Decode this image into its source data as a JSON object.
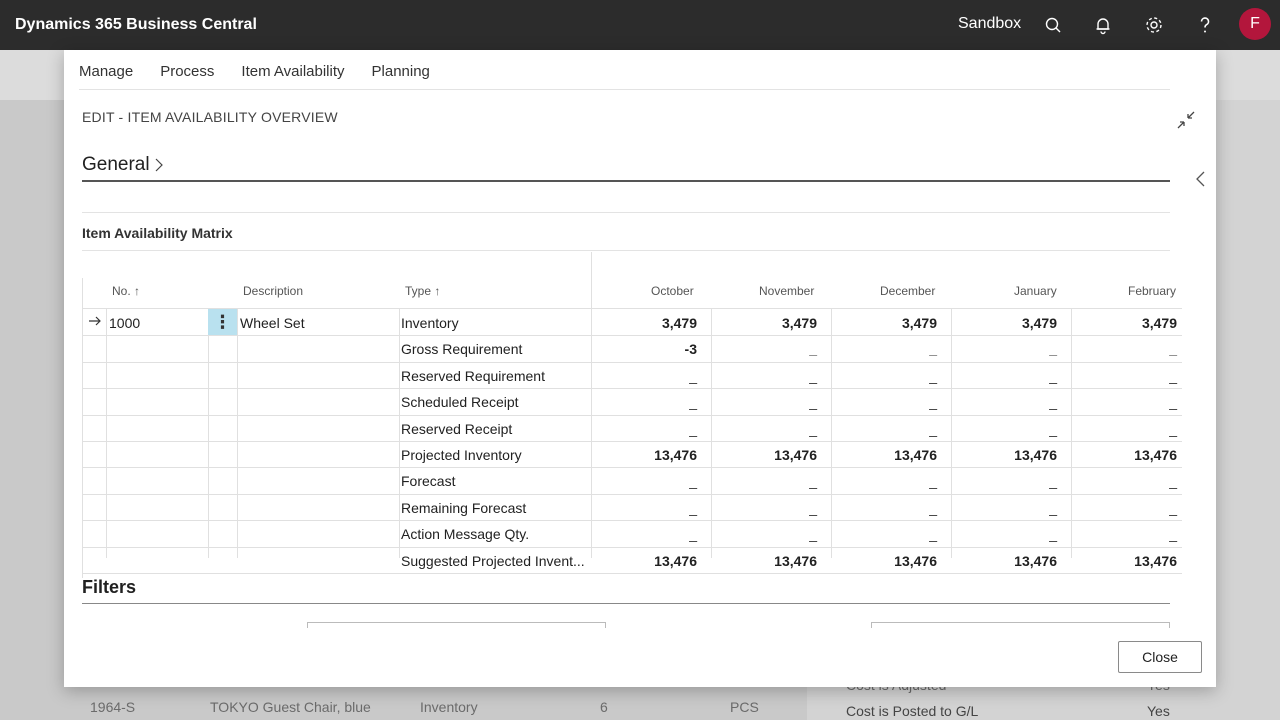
{
  "app": {
    "title": "Dynamics 365 Business Central",
    "environment": "Sandbox",
    "avatar_initial": "F",
    "avatar_color": "#b3163c",
    "icons": [
      "search-icon",
      "bell-icon",
      "gear-icon",
      "help-icon"
    ]
  },
  "background": {
    "row_texts": [
      "1964-S",
      "TOKYO Guest Chair, blue",
      "Inventory",
      "6",
      "PCS"
    ],
    "right_texts": [
      {
        "label": "Cost is Adjusted",
        "value": "Yes"
      },
      {
        "label": "Cost is Posted to G/L",
        "value": "Yes"
      }
    ]
  },
  "dialog": {
    "menu": [
      "Manage",
      "Process",
      "Item Availability",
      "Planning"
    ],
    "caption": "EDIT - ITEM AVAILABILITY OVERVIEW",
    "general_label": "General",
    "matrix_title": "Item Availability Matrix",
    "filters_label": "Filters",
    "close_label": "Close"
  },
  "grid": {
    "headers": {
      "no": "No. ↑",
      "description": "Description",
      "type": "Type ↑"
    },
    "periods": [
      "October",
      "November",
      "December",
      "January",
      "February"
    ],
    "item": {
      "no": "1000",
      "description": "Wheel Set"
    },
    "rows": [
      {
        "type": "Inventory",
        "bold": true,
        "values": [
          "3,479",
          "3,479",
          "3,479",
          "3,479",
          "3,479"
        ]
      },
      {
        "type": "Gross Requirement",
        "bold": true,
        "values": [
          "-3",
          "_",
          "_",
          "_",
          "_"
        ]
      },
      {
        "type": "Reserved Requirement",
        "bold": false,
        "values": [
          "_",
          "_",
          "_",
          "_",
          "_"
        ]
      },
      {
        "type": "Scheduled Receipt",
        "bold": false,
        "values": [
          "_",
          "_",
          "_",
          "_",
          "_"
        ]
      },
      {
        "type": "Reserved Receipt",
        "bold": false,
        "values": [
          "_",
          "_",
          "_",
          "_",
          "_"
        ]
      },
      {
        "type": "Projected Inventory",
        "bold": true,
        "values": [
          "13,476",
          "13,476",
          "13,476",
          "13,476",
          "13,476"
        ]
      },
      {
        "type": "Forecast",
        "bold": false,
        "values": [
          "_",
          "_",
          "_",
          "_",
          "_"
        ]
      },
      {
        "type": "Remaining Forecast",
        "bold": false,
        "values": [
          "_",
          "_",
          "_",
          "_",
          "_"
        ]
      },
      {
        "type": "Action Message Qty.",
        "bold": false,
        "values": [
          "_",
          "_",
          "_",
          "_",
          "_"
        ]
      },
      {
        "type": "Suggested Projected Invent...",
        "bold": true,
        "values": [
          "13,476",
          "13,476",
          "13,476",
          "13,476",
          "13,476"
        ]
      }
    ]
  }
}
